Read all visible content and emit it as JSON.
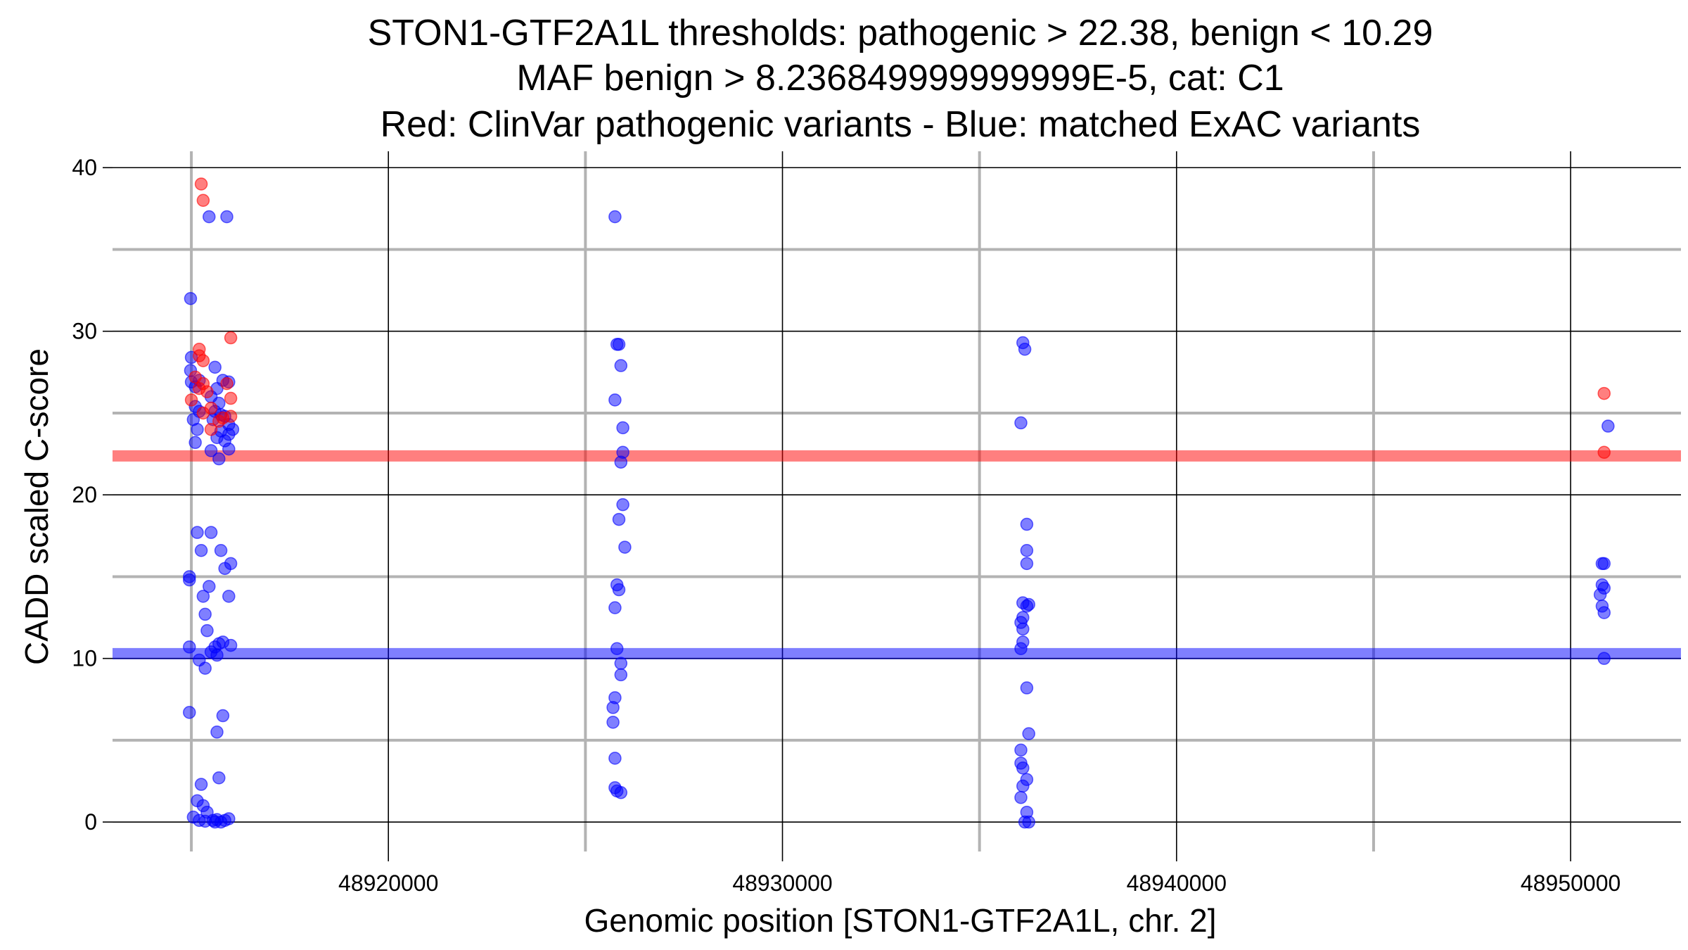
{
  "chart_data": {
    "type": "scatter",
    "title_lines": [
      "STON1-GTF2A1L thresholds: pathogenic > 22.38, benign < 10.29",
      "MAF benign > 8.236849999999999E-5, cat: C1",
      "Red: ClinVar pathogenic variants - Blue: matched ExAC variants"
    ],
    "xlabel": "Genomic position [STON1-GTF2A1L, chr. 2]",
    "ylabel": "CADD scaled C-score",
    "xlim": [
      48913000,
      48952800
    ],
    "ylim": [
      -1.8,
      41
    ],
    "x_ticks": [
      48920000,
      48930000,
      48940000,
      48950000
    ],
    "x_tick_labels": [
      "48920000",
      "48930000",
      "48940000",
      "48950000"
    ],
    "x_minor_grid": [
      48915000,
      48925000,
      48935000,
      48945000
    ],
    "y_ticks": [
      0,
      10,
      20,
      30,
      40
    ],
    "y_tick_labels": [
      "0",
      "10",
      "20",
      "30",
      "40"
    ],
    "y_minor_grid": [
      5,
      15,
      25,
      35
    ],
    "grid": true,
    "thresholds": [
      {
        "name": "pathogenic",
        "value": 22.38,
        "color": "#ff0000"
      },
      {
        "name": "benign",
        "value": 10.29,
        "color": "#0000ff"
      }
    ],
    "colors": {
      "pathogenic": "#ff0000",
      "benign": "#0000ff"
    },
    "series": [
      {
        "name": "ClinVar pathogenic variants",
        "color": "#ff0000",
        "points": [
          [
            48915250,
            39.0
          ],
          [
            48915300,
            38.0
          ],
          [
            48916000,
            29.6
          ],
          [
            48915200,
            28.9
          ],
          [
            48915200,
            28.5
          ],
          [
            48915300,
            28.2
          ],
          [
            48915100,
            27.2
          ],
          [
            48915300,
            26.8
          ],
          [
            48915200,
            26.5
          ],
          [
            48915400,
            26.3
          ],
          [
            48915900,
            26.8
          ],
          [
            48916000,
            25.9
          ],
          [
            48915000,
            25.8
          ],
          [
            48915500,
            25.3
          ],
          [
            48915300,
            25.0
          ],
          [
            48915800,
            24.7
          ],
          [
            48915700,
            24.5
          ],
          [
            48916000,
            24.8
          ],
          [
            48915500,
            24.0
          ],
          [
            48950850,
            26.2
          ],
          [
            48950850,
            22.6
          ]
        ]
      },
      {
        "name": "matched ExAC variants",
        "color": "#0000ff",
        "points": [
          [
            48915450,
            37.0
          ],
          [
            48915900,
            37.0
          ],
          [
            48914980,
            32.0
          ],
          [
            48915000,
            28.4
          ],
          [
            48914980,
            27.6
          ],
          [
            48915000,
            26.9
          ],
          [
            48915100,
            26.6
          ],
          [
            48915200,
            27.0
          ],
          [
            48915600,
            27.8
          ],
          [
            48915800,
            27.0
          ],
          [
            48915950,
            26.9
          ],
          [
            48915650,
            26.5
          ],
          [
            48915500,
            26.0
          ],
          [
            48915700,
            25.6
          ],
          [
            48915100,
            25.4
          ],
          [
            48915200,
            25.1
          ],
          [
            48915050,
            24.6
          ],
          [
            48915150,
            24.0
          ],
          [
            48915600,
            25.1
          ],
          [
            48915750,
            24.9
          ],
          [
            48915850,
            24.8
          ],
          [
            48915950,
            24.3
          ],
          [
            48916050,
            24.0
          ],
          [
            48915550,
            24.6
          ],
          [
            48915650,
            23.5
          ],
          [
            48915850,
            23.3
          ],
          [
            48915950,
            23.7
          ],
          [
            48915100,
            23.2
          ],
          [
            48915500,
            22.7
          ],
          [
            48915700,
            22.2
          ],
          [
            48915950,
            22.8
          ],
          [
            48915750,
            23.9
          ],
          [
            48915150,
            17.7
          ],
          [
            48915500,
            17.7
          ],
          [
            48915250,
            16.6
          ],
          [
            48915750,
            16.6
          ],
          [
            48916000,
            15.8
          ],
          [
            48915850,
            15.5
          ],
          [
            48914950,
            15.0
          ],
          [
            48914950,
            14.8
          ],
          [
            48915450,
            14.4
          ],
          [
            48915300,
            13.8
          ],
          [
            48915950,
            13.8
          ],
          [
            48915350,
            12.7
          ],
          [
            48915400,
            11.7
          ],
          [
            48915800,
            11.0
          ],
          [
            48915700,
            10.9
          ],
          [
            48916000,
            10.8
          ],
          [
            48914950,
            10.7
          ],
          [
            48915600,
            10.7
          ],
          [
            48915500,
            10.4
          ],
          [
            48915650,
            10.2
          ],
          [
            48915200,
            9.9
          ],
          [
            48915350,
            9.4
          ],
          [
            48914950,
            6.7
          ],
          [
            48915800,
            6.5
          ],
          [
            48915650,
            5.5
          ],
          [
            48915700,
            2.7
          ],
          [
            48915250,
            2.3
          ],
          [
            48915150,
            1.3
          ],
          [
            48915300,
            1.0
          ],
          [
            48915400,
            0.6
          ],
          [
            48915050,
            0.3
          ],
          [
            48915200,
            0.1
          ],
          [
            48915350,
            0.05
          ],
          [
            48915550,
            0.1
          ],
          [
            48915650,
            0.15
          ],
          [
            48915750,
            0.0
          ],
          [
            48915850,
            0.1
          ],
          [
            48915950,
            0.2
          ],
          [
            48915600,
            0.0
          ],
          [
            48925750,
            37.0
          ],
          [
            48925800,
            29.2
          ],
          [
            48925850,
            29.2
          ],
          [
            48925900,
            27.9
          ],
          [
            48925750,
            25.8
          ],
          [
            48925950,
            24.1
          ],
          [
            48925950,
            22.6
          ],
          [
            48925900,
            22.0
          ],
          [
            48925950,
            19.4
          ],
          [
            48925850,
            18.5
          ],
          [
            48926000,
            16.8
          ],
          [
            48925800,
            14.5
          ],
          [
            48925850,
            14.2
          ],
          [
            48925750,
            13.1
          ],
          [
            48925800,
            10.6
          ],
          [
            48925900,
            9.7
          ],
          [
            48925900,
            9.0
          ],
          [
            48925750,
            7.6
          ],
          [
            48925700,
            7.0
          ],
          [
            48925700,
            6.1
          ],
          [
            48925750,
            3.9
          ],
          [
            48925750,
            2.1
          ],
          [
            48925800,
            1.9
          ],
          [
            48925900,
            1.8
          ],
          [
            48936100,
            29.3
          ],
          [
            48936150,
            28.9
          ],
          [
            48936050,
            24.4
          ],
          [
            48936200,
            18.2
          ],
          [
            48936200,
            16.6
          ],
          [
            48936200,
            15.8
          ],
          [
            48936100,
            13.4
          ],
          [
            48936200,
            13.2
          ],
          [
            48936250,
            13.3
          ],
          [
            48936100,
            12.5
          ],
          [
            48936050,
            12.2
          ],
          [
            48936100,
            11.8
          ],
          [
            48936100,
            11.0
          ],
          [
            48936050,
            10.6
          ],
          [
            48936200,
            8.2
          ],
          [
            48936250,
            5.4
          ],
          [
            48936050,
            4.4
          ],
          [
            48936050,
            3.6
          ],
          [
            48936100,
            3.3
          ],
          [
            48936200,
            2.6
          ],
          [
            48936100,
            2.2
          ],
          [
            48936050,
            1.5
          ],
          [
            48936200,
            0.6
          ],
          [
            48936150,
            0.0
          ],
          [
            48936250,
            0.0
          ],
          [
            48950950,
            24.2
          ],
          [
            48950800,
            15.8
          ],
          [
            48950850,
            15.8
          ],
          [
            48950800,
            14.5
          ],
          [
            48950850,
            14.3
          ],
          [
            48950750,
            13.9
          ],
          [
            48950800,
            13.2
          ],
          [
            48950850,
            12.8
          ],
          [
            48950850,
            10.0
          ]
        ]
      }
    ]
  }
}
